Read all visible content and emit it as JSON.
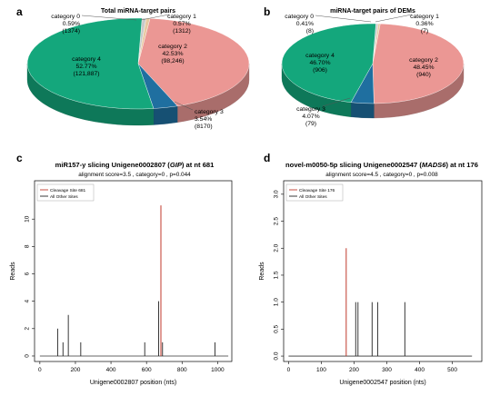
{
  "panels": {
    "a": {
      "letter": "a"
    },
    "b": {
      "letter": "b"
    },
    "c": {
      "letter": "c"
    },
    "d": {
      "letter": "d"
    }
  },
  "chart_data": [
    {
      "panel": "a",
      "type": "pie",
      "title": "Total miRNA-target pairs",
      "slices": [
        {
          "label": "category 0",
          "percent": "0.59%",
          "count": "(1374)",
          "value": 0.59,
          "color": "#c9c9c9"
        },
        {
          "label": "category 1",
          "percent": "0.57%",
          "count": "(1312)",
          "value": 0.57,
          "color": "#e8c8a0"
        },
        {
          "label": "category 2",
          "percent": "42.53%",
          "count": "(98,246)",
          "value": 42.53,
          "color": "#eb9794"
        },
        {
          "label": "category 3",
          "percent": "3.54%",
          "count": "(8170)",
          "value": 3.54,
          "color": "#1f6fa0"
        },
        {
          "label": "category 4",
          "percent": "52.77%",
          "count": "(121,887)",
          "value": 52.77,
          "color": "#14a77c"
        }
      ]
    },
    {
      "panel": "b",
      "type": "pie",
      "title": "miRNA-target pairs of DEMs",
      "slices": [
        {
          "label": "category 0",
          "percent": "0.41%",
          "count": "(8)",
          "value": 0.41,
          "color": "#c9c9c9"
        },
        {
          "label": "category 1",
          "percent": "0.36%",
          "count": "(7)",
          "value": 0.36,
          "color": "#e8c8a0"
        },
        {
          "label": "category 2",
          "percent": "48.45%",
          "count": "(940)",
          "value": 48.45,
          "color": "#eb9794"
        },
        {
          "label": "category 3",
          "percent": "4.07%",
          "count": "(79)",
          "value": 4.07,
          "color": "#1f6fa0"
        },
        {
          "label": "category 4",
          "percent": "46.70%",
          "count": "(906)",
          "value": 46.7,
          "color": "#14a77c"
        }
      ]
    },
    {
      "panel": "c",
      "type": "line",
      "title_parts": [
        "miR157-y slicing Unigene0002807 (",
        "GIP",
        ") at nt 681"
      ],
      "subtitle": "alignment score=3.5 , category=0 , p=0.044",
      "xlabel": "Unigene0002807 position (nts)",
      "ylabel": "Reads",
      "xlim": [
        -30,
        1080
      ],
      "ylim": [
        -0.4,
        12.8
      ],
      "xticks": [
        0,
        200,
        400,
        600,
        800,
        1000
      ],
      "yticks": [
        0,
        2,
        4,
        6,
        8,
        10
      ],
      "transcript_length": 1060,
      "legend": [
        {
          "label": "Cleavage Site 681",
          "color": "#c0392b"
        },
        {
          "label": "All Other Sites",
          "color": "#222222"
        }
      ],
      "cleavage_site": {
        "x": 681,
        "y": 11
      },
      "other_sites": [
        {
          "x": 100,
          "y": 2
        },
        {
          "x": 130,
          "y": 1
        },
        {
          "x": 160,
          "y": 3
        },
        {
          "x": 230,
          "y": 1
        },
        {
          "x": 590,
          "y": 1
        },
        {
          "x": 668,
          "y": 4
        },
        {
          "x": 690,
          "y": 1
        },
        {
          "x": 985,
          "y": 1
        }
      ]
    },
    {
      "panel": "d",
      "type": "line",
      "title_parts": [
        "novel-m0050-5p slicing Unigene0002547 (",
        "MADS6",
        ") at nt 176"
      ],
      "subtitle": "alignment score=4.5 , category=0 , p=0.008",
      "xlabel": "Unigene0002547 position (nts)",
      "ylabel": "Reads",
      "xlim": [
        -15,
        590
      ],
      "ylim": [
        -0.1,
        3.25
      ],
      "xticks": [
        0,
        100,
        200,
        300,
        400,
        500
      ],
      "yticks": [
        0.0,
        0.5,
        1.0,
        1.5,
        2.0,
        2.5,
        3.0
      ],
      "transcript_length": 560,
      "legend": [
        {
          "label": "Cleavage Site 176",
          "color": "#c0392b"
        },
        {
          "label": "All Other Sites",
          "color": "#222222"
        }
      ],
      "cleavage_site": {
        "x": 176,
        "y": 2
      },
      "other_sites": [
        {
          "x": 205,
          "y": 1
        },
        {
          "x": 212,
          "y": 1
        },
        {
          "x": 255,
          "y": 1
        },
        {
          "x": 272,
          "y": 1
        },
        {
          "x": 355,
          "y": 1
        }
      ]
    }
  ]
}
